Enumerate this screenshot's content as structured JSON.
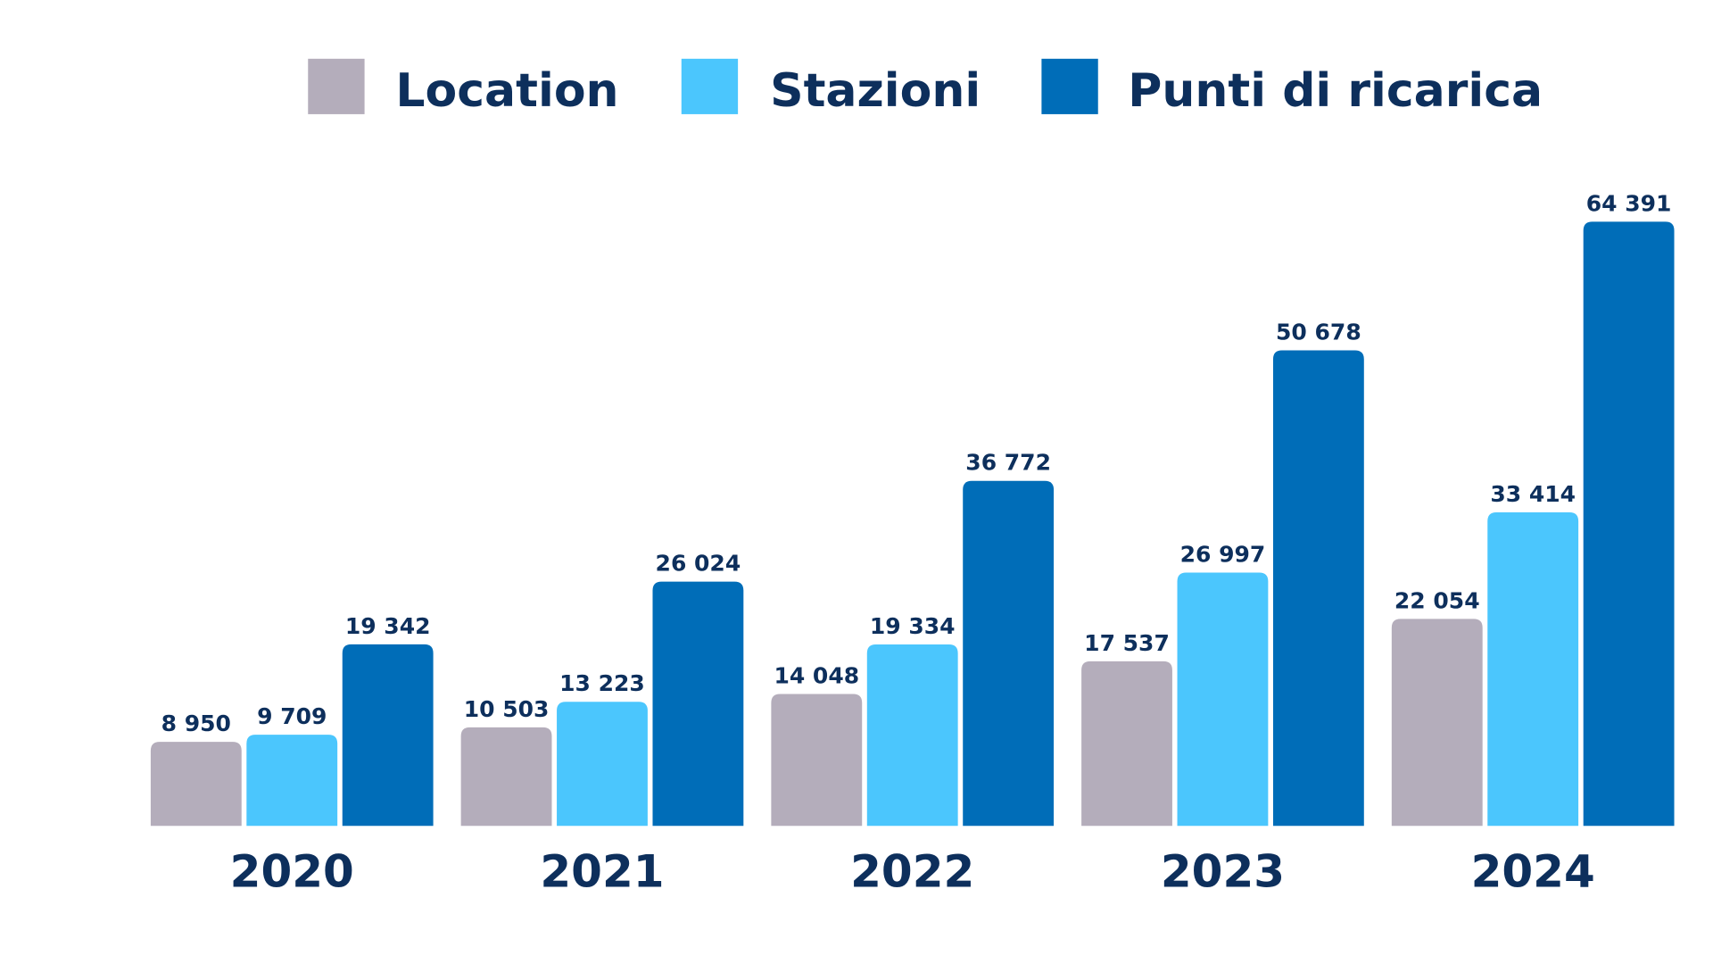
{
  "chart_data": {
    "type": "bar",
    "title": "",
    "xlabel": "",
    "ylabel": "",
    "categories": [
      "2020",
      "2021",
      "2022",
      "2023",
      "2024"
    ],
    "series": [
      {
        "name": "Location",
        "color": "#b4adbb",
        "values": [
          8950,
          10503,
          14048,
          17537,
          22054
        ],
        "labels": [
          "8 950",
          "10 503",
          "14 048",
          "17 537",
          "22 054"
        ]
      },
      {
        "name": "Stazioni",
        "color": "#4bc6fd",
        "values": [
          9709,
          13223,
          19334,
          26997,
          33414
        ],
        "labels": [
          "9 709",
          "13 223",
          "19 334",
          "26 997",
          "33 414"
        ]
      },
      {
        "name": "Punti di ricarica",
        "color": "#006db8",
        "values": [
          19342,
          26024,
          36772,
          50678,
          64391
        ],
        "labels": [
          "19 342",
          "26 024",
          "36 772",
          "50 678",
          "64 391"
        ]
      }
    ],
    "ylim": [
      0,
      64391
    ],
    "grid": false,
    "legend_position": "top"
  }
}
